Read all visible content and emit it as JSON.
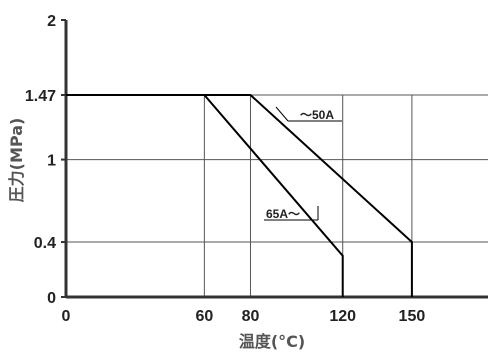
{
  "chart_data": {
    "type": "line",
    "xlabel": "温度(°C)",
    "ylabel": "圧力(MPa)",
    "x_ticks": [
      0,
      60,
      80,
      120,
      150
    ],
    "x_tick_labels": [
      "0",
      "60",
      "80",
      "120",
      "150"
    ],
    "y_ticks": [
      0,
      0.4,
      1,
      1.47,
      2
    ],
    "y_tick_labels": [
      "0",
      "0.4",
      "1",
      "1.47",
      "2"
    ],
    "xlim": [
      0,
      183
    ],
    "ylim": [
      0,
      2
    ],
    "grid": true,
    "series": [
      {
        "name": "〜50A",
        "color": "#000000",
        "points": [
          [
            0,
            1.47
          ],
          [
            80,
            1.47
          ],
          [
            150,
            0.4
          ],
          [
            150,
            0
          ]
        ]
      },
      {
        "name": "65A〜",
        "color": "#000000",
        "points": [
          [
            60,
            1.47
          ],
          [
            120,
            0.3
          ],
          [
            120,
            0
          ]
        ]
      }
    ],
    "annotations": [
      {
        "text": "〜50A",
        "series": 0
      },
      {
        "text": "65A〜",
        "series": 1
      }
    ]
  }
}
